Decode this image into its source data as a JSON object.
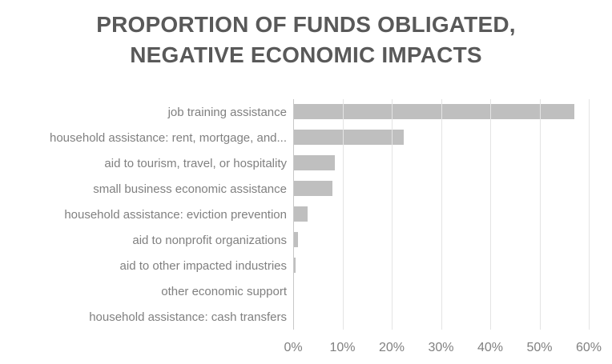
{
  "chart": {
    "title_line1": "PROPORTION OF FUNDS OBLIGATED,",
    "title_line2": "NEGATIVE ECONOMIC IMPACTS",
    "colors": {
      "bar": "#bfbfbf",
      "title_text": "#595959",
      "label_text": "#808080",
      "gridline": "#e4e4e4",
      "axis_line": "#c8c8c8",
      "background": "#ffffff"
    }
  },
  "chart_data": {
    "type": "bar",
    "orientation": "horizontal",
    "title": "PROPORTION OF FUNDS OBLIGATED, NEGATIVE ECONOMIC IMPACTS",
    "categories": [
      "job training assistance",
      "household assistance: rent, mortgage, and...",
      "aid to tourism, travel, or hospitality",
      "small business economic assistance",
      "household assistance: eviction prevention",
      "aid to nonprofit organizations",
      "aid to other impacted industries",
      "other economic support",
      "household assistance: cash transfers"
    ],
    "values": [
      57,
      22.4,
      8.5,
      8,
      3,
      1,
      0.5,
      0,
      0
    ],
    "value_unit": "%",
    "xlabel": "",
    "ylabel": "",
    "xlim": [
      0,
      60
    ],
    "x_tick_labels": [
      "0%",
      "10%",
      "20%",
      "30%",
      "40%",
      "50%",
      "60%"
    ],
    "grid": true,
    "legend": false
  }
}
